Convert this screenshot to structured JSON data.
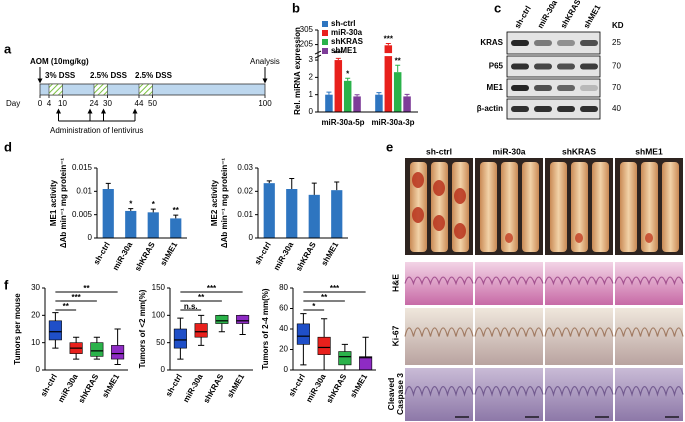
{
  "panel_labels": [
    "a",
    "b",
    "c",
    "d",
    "e",
    "f"
  ],
  "timeline": {
    "treatment": "AOM (10mg/kg)",
    "dss": [
      "3% DSS",
      "2.5% DSS",
      "2.5% DSS"
    ],
    "end": "Analysis",
    "day_label": "Day",
    "days": [
      0,
      4,
      10,
      24,
      30,
      44,
      50,
      100
    ],
    "lentivirus_label": "Administration of lentivirus"
  },
  "blot": {
    "lanes": [
      "sh-ctrl",
      "miR-30a",
      "shKRAS",
      "shME1"
    ],
    "unit": "KD",
    "rows": [
      {
        "name": "KRAS",
        "size": 25
      },
      {
        "name": "P65",
        "size": 70
      },
      {
        "name": "ME1",
        "size": 70
      },
      {
        "name": "β-actin",
        "size": 40
      }
    ]
  },
  "histology": {
    "groups": [
      "sh-ctrl",
      "miR-30a",
      "shKRAS",
      "shME1"
    ],
    "stains": [
      [
        "H&E"
      ],
      [
        "Ki-67"
      ],
      [
        "Cleaved",
        "Caspase 3"
      ]
    ]
  },
  "chart_data": [
    {
      "type": "bar",
      "y_label": "Rel. miRNA expression",
      "categories": [
        "miR-30a-5p",
        "miR-30a-3p"
      ],
      "ylim": [
        0,
        305
      ],
      "axis_break": [
        3.2,
        150
      ],
      "yticks": [
        0,
        1,
        2,
        3,
        205,
        305
      ],
      "legend": "upper left",
      "series": [
        {
          "name": "sh-ctrl",
          "color": "#2e75c0",
          "values": [
            1,
            1
          ],
          "errors": [
            0.15,
            0.12
          ]
        },
        {
          "name": "miR-30a",
          "color": "#e8201c",
          "values": [
            3,
            200
          ],
          "errors": [
            0.1,
            12
          ],
          "stars": [
            "***",
            "***"
          ]
        },
        {
          "name": "shKRAS",
          "color": "#2ab24a",
          "values": [
            1.8,
            2.3
          ],
          "errors": [
            0.15,
            0.4
          ],
          "stars": [
            "*",
            "**"
          ]
        },
        {
          "name": "shME1",
          "color": "#7d3c98",
          "values": [
            0.9,
            0.9
          ],
          "errors": [
            0.1,
            0.12
          ]
        }
      ]
    },
    {
      "type": "bar",
      "y_label": "ME1 activity",
      "y_unit": "ΔAb min⁻¹ mg protein⁻¹",
      "categories": [
        "sh-ctrl",
        "miR-30a",
        "shKRAS",
        "shME1"
      ],
      "ylim": [
        0,
        0.015
      ],
      "yticks": [
        0,
        0.005,
        0.01,
        0.015
      ],
      "color": "#2e75c0",
      "values": [
        0.0105,
        0.0058,
        0.0055,
        0.0042
      ],
      "errors": [
        0.0012,
        0.0005,
        0.0007,
        0.0007
      ],
      "stars": [
        null,
        "*",
        "*",
        "**"
      ]
    },
    {
      "type": "bar",
      "y_label": "ME2 activity",
      "y_unit": "ΔAb min⁻¹ mg protein⁻¹",
      "categories": [
        "sh-ctrl",
        "miR-30a",
        "shKRAS",
        "shME1"
      ],
      "ylim": [
        0,
        0.03
      ],
      "yticks": [
        0,
        0.01,
        0.02,
        0.03
      ],
      "color": "#2e75c0",
      "values": [
        0.0235,
        0.021,
        0.0185,
        0.0205
      ],
      "errors": [
        0.001,
        0.0045,
        0.005,
        0.0035
      ]
    },
    {
      "type": "box",
      "y_label": "Tumors per mouse",
      "categories": [
        "sh-ctrl",
        "miR-30a",
        "shKRAS",
        "shME1"
      ],
      "ylim": [
        0,
        30
      ],
      "yticks": [
        0,
        10,
        20,
        30
      ],
      "colors": [
        "#1f4fc8",
        "#e8201c",
        "#2ab24a",
        "#8e2bc4"
      ],
      "values": [
        [
          8,
          11,
          14,
          18,
          21
        ],
        [
          4,
          6,
          8,
          10,
          12
        ],
        [
          4,
          5,
          7,
          10,
          12
        ],
        [
          2,
          4,
          6,
          9,
          15
        ]
      ],
      "comparisons": [
        {
          "pair": [
            0,
            1
          ],
          "label": "**"
        },
        {
          "pair": [
            0,
            2
          ],
          "label": "***"
        },
        {
          "pair": [
            0,
            3
          ],
          "label": "**"
        }
      ]
    },
    {
      "type": "box",
      "y_label": "Tumors of <2 mm(%)",
      "categories": [
        "sh-ctrl",
        "miR-30a",
        "shKRAS",
        "shME1"
      ],
      "ylim": [
        0,
        150
      ],
      "yticks": [
        0,
        50,
        100,
        150
      ],
      "colors": [
        "#1f4fc8",
        "#e8201c",
        "#2ab24a",
        "#8e2bc4"
      ],
      "values": [
        [
          20,
          40,
          55,
          75,
          95
        ],
        [
          45,
          60,
          70,
          85,
          100
        ],
        [
          70,
          85,
          90,
          100,
          100
        ],
        [
          65,
          85,
          90,
          100,
          100
        ]
      ],
      "comparisons": [
        {
          "pair": [
            0,
            1
          ],
          "label": "n.s."
        },
        {
          "pair": [
            0,
            2
          ],
          "label": "**"
        },
        {
          "pair": [
            0,
            3
          ],
          "label": "***"
        }
      ]
    },
    {
      "type": "box",
      "y_label": "Tumors of 2-4 mm(%)",
      "categories": [
        "sh-ctrl",
        "miR-30a",
        "shKRAS",
        "shME1"
      ],
      "ylim": [
        0,
        80
      ],
      "yticks": [
        0,
        20,
        40,
        60,
        80
      ],
      "colors": [
        "#1f4fc8",
        "#e8201c",
        "#2ab24a",
        "#8e2bc4"
      ],
      "values": [
        [
          5,
          25,
          33,
          45,
          55
        ],
        [
          0,
          15,
          22,
          32,
          50
        ],
        [
          0,
          5,
          13,
          18,
          25
        ],
        [
          0,
          0,
          12,
          13,
          32
        ]
      ],
      "comparisons": [
        {
          "pair": [
            0,
            1
          ],
          "label": "*"
        },
        {
          "pair": [
            0,
            2
          ],
          "label": "**"
        },
        {
          "pair": [
            0,
            3
          ],
          "label": "***"
        }
      ]
    }
  ]
}
